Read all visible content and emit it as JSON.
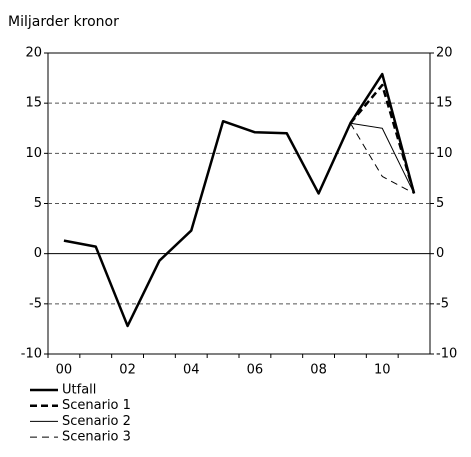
{
  "chart_data": {
    "type": "line",
    "subtitle": "Miljarder kronor",
    "categories": [
      "00",
      null,
      "02",
      null,
      "04",
      null,
      "06",
      null,
      "08",
      null,
      "10",
      null
    ],
    "series": [
      {
        "name": "Utfall",
        "color": "#000000",
        "line_style": "solid",
        "line_width": 2.5,
        "values": [
          1.3,
          0.7,
          -7.2,
          -0.7,
          2.3,
          13.2,
          12.1,
          12.0,
          6.0,
          13.0,
          17.9,
          6.0
        ]
      },
      {
        "name": "Scenario 1",
        "color": "#000000",
        "line_style": "dashed",
        "line_width": 2.5,
        "values": [
          null,
          null,
          null,
          null,
          null,
          null,
          null,
          null,
          null,
          13.0,
          16.8,
          6.0
        ]
      },
      {
        "name": "Scenario 2",
        "color": "#000000",
        "line_style": "solid",
        "line_width": 1,
        "values": [
          null,
          null,
          null,
          null,
          null,
          null,
          null,
          null,
          null,
          13.0,
          12.5,
          6.0
        ]
      },
      {
        "name": "Scenario 3",
        "color": "#000000",
        "line_style": "dashed",
        "line_width": 1,
        "values": [
          null,
          null,
          null,
          null,
          null,
          null,
          null,
          null,
          null,
          13.0,
          7.7,
          6.0
        ]
      }
    ],
    "ylim": [
      -10,
      20
    ],
    "yticks": [
      -10,
      -5,
      0,
      5,
      10,
      15,
      20
    ],
    "y2lim": [
      -10,
      20
    ],
    "y2ticks": [
      -10,
      -5,
      0,
      5,
      10,
      15,
      20
    ],
    "grid": true,
    "legend": "bottom"
  }
}
